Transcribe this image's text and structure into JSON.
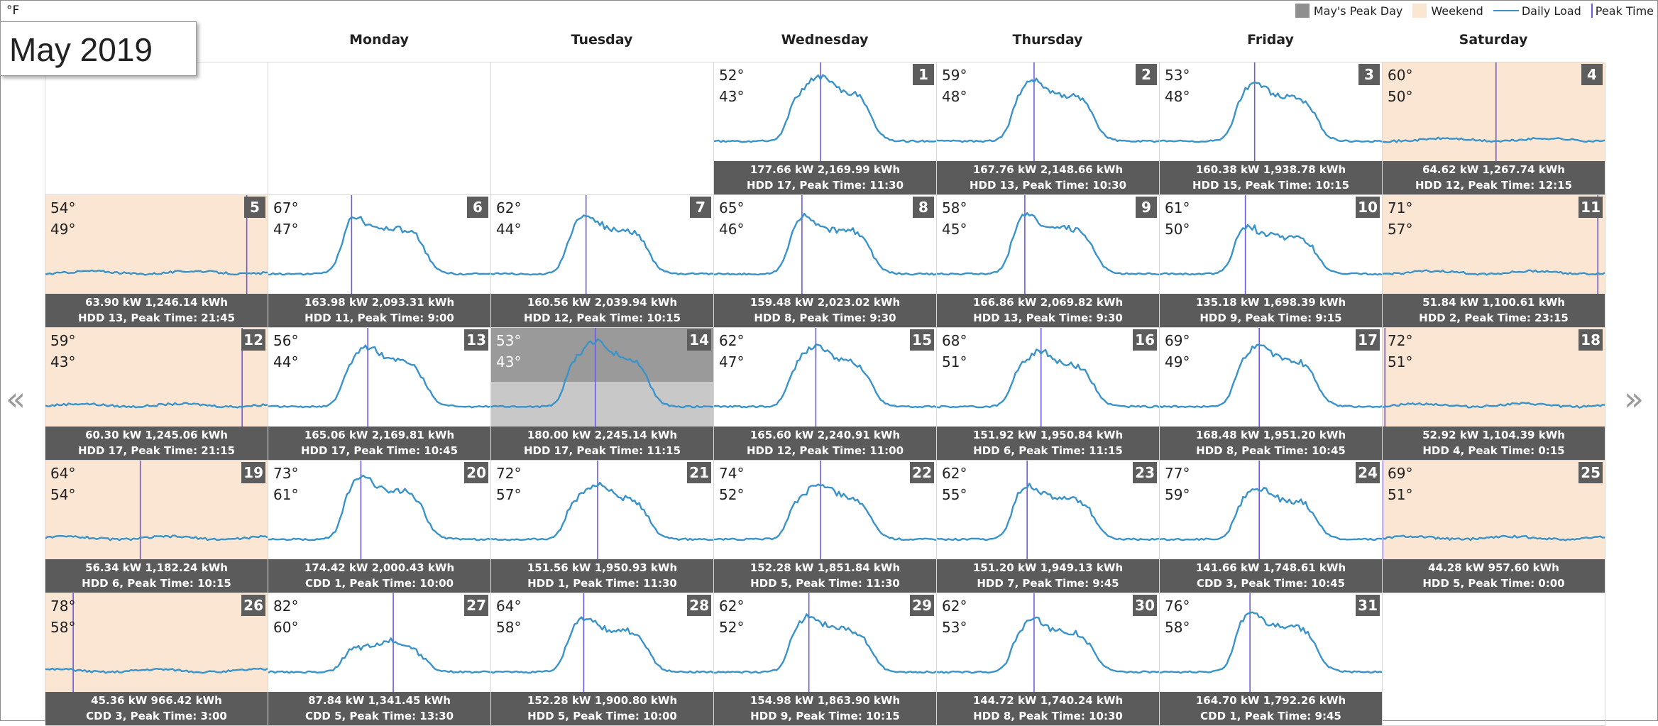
{
  "header": {
    "unit": "°F",
    "month_title": "May 2019",
    "legend": [
      {
        "name": "peak-day",
        "label": "May's Peak Day",
        "kind": "swatch",
        "color": "#8f8f8f"
      },
      {
        "name": "weekend",
        "label": "Weekend",
        "kind": "swatch",
        "color": "#fbe5d3"
      },
      {
        "name": "daily-load",
        "label": "Daily Load",
        "kind": "line",
        "color": "#3a93c8"
      },
      {
        "name": "peak-time",
        "label": "Peak Time",
        "kind": "vline",
        "color": "#6a5ae0"
      }
    ]
  },
  "weekdays": [
    "Monday",
    "Tuesday",
    "Wednesday",
    "Thursday",
    "Friday",
    "Saturday"
  ],
  "nav": {
    "prev": "«",
    "next": "»"
  },
  "colors": {
    "load_line": "#3a93c8",
    "peak_line": "#6a5ae0",
    "weekend_bg": "#fbe5d3",
    "peak_bg": "#c8c8c8",
    "footer_bg": "#5b5b5b"
  },
  "days": [
    {
      "day": 1,
      "hi": "52°",
      "lo": "43°",
      "line1": "177.66 kW 2,169.99 kWh",
      "line2": "HDD 17, Peak Time: 11:30",
      "peak_hour": 11.5,
      "weekend": false
    },
    {
      "day": 2,
      "hi": "59°",
      "lo": "48°",
      "line1": "167.76 kW 2,148.66 kWh",
      "line2": "HDD 13, Peak Time: 10:30",
      "peak_hour": 10.5,
      "weekend": false
    },
    {
      "day": 3,
      "hi": "53°",
      "lo": "48°",
      "line1": "160.38 kW 1,938.78 kWh",
      "line2": "HDD 15, Peak Time: 10:15",
      "peak_hour": 10.25,
      "weekend": false
    },
    {
      "day": 4,
      "hi": "60°",
      "lo": "50°",
      "line1": "64.62 kW 1,267.74 kWh",
      "line2": "HDD 12, Peak Time: 12:15",
      "peak_hour": 12.25,
      "weekend": true
    },
    {
      "day": 5,
      "hi": "54°",
      "lo": "49°",
      "line1": "63.90 kW 1,246.14 kWh",
      "line2": "HDD 13, Peak Time: 21:45",
      "peak_hour": 21.75,
      "weekend": true
    },
    {
      "day": 6,
      "hi": "67°",
      "lo": "47°",
      "line1": "163.98 kW 2,093.31 kWh",
      "line2": "HDD 11, Peak Time: 9:00",
      "peak_hour": 9.0,
      "weekend": false
    },
    {
      "day": 7,
      "hi": "62°",
      "lo": "44°",
      "line1": "160.56 kW 2,039.94 kWh",
      "line2": "HDD 12, Peak Time: 10:15",
      "peak_hour": 10.25,
      "weekend": false
    },
    {
      "day": 8,
      "hi": "65°",
      "lo": "46°",
      "line1": "159.48 kW 2,023.02 kWh",
      "line2": "HDD 8, Peak Time: 9:30",
      "peak_hour": 9.5,
      "weekend": false
    },
    {
      "day": 9,
      "hi": "58°",
      "lo": "45°",
      "line1": "166.86 kW 2,069.82 kWh",
      "line2": "HDD 13, Peak Time: 9:30",
      "peak_hour": 9.5,
      "weekend": false
    },
    {
      "day": 10,
      "hi": "61°",
      "lo": "50°",
      "line1": "135.18 kW 1,698.39 kWh",
      "line2": "HDD 9, Peak Time: 9:15",
      "peak_hour": 9.25,
      "weekend": false
    },
    {
      "day": 11,
      "hi": "71°",
      "lo": "57°",
      "line1": "51.84 kW 1,100.61 kWh",
      "line2": "HDD 2, Peak Time: 23:15",
      "peak_hour": 23.25,
      "weekend": true
    },
    {
      "day": 12,
      "hi": "59°",
      "lo": "43°",
      "line1": "60.30 kW 1,245.06 kWh",
      "line2": "HDD 17, Peak Time: 21:15",
      "peak_hour": 21.25,
      "weekend": true
    },
    {
      "day": 13,
      "hi": "56°",
      "lo": "44°",
      "line1": "165.06 kW 2,169.81 kWh",
      "line2": "HDD 17, Peak Time: 10:45",
      "peak_hour": 10.75,
      "weekend": false
    },
    {
      "day": 14,
      "hi": "53°",
      "lo": "43°",
      "line1": "180.00 kW 2,245.14 kWh",
      "line2": "HDD 17, Peak Time: 11:15",
      "peak_hour": 11.25,
      "weekend": false,
      "peak_day": true
    },
    {
      "day": 15,
      "hi": "62°",
      "lo": "47°",
      "line1": "165.60 kW 2,240.91 kWh",
      "line2": "HDD 12, Peak Time: 11:00",
      "peak_hour": 11.0,
      "weekend": false
    },
    {
      "day": 16,
      "hi": "68°",
      "lo": "51°",
      "line1": "151.92 kW 1,950.84 kWh",
      "line2": "HDD 6, Peak Time: 11:15",
      "peak_hour": 11.25,
      "weekend": false
    },
    {
      "day": 17,
      "hi": "69°",
      "lo": "49°",
      "line1": "168.48 kW 1,951.20 kWh",
      "line2": "HDD 8, Peak Time: 10:45",
      "peak_hour": 10.75,
      "weekend": false
    },
    {
      "day": 18,
      "hi": "72°",
      "lo": "51°",
      "line1": "52.92 kW 1,104.39 kWh",
      "line2": "HDD 4, Peak Time: 0:15",
      "peak_hour": 0.25,
      "weekend": true
    },
    {
      "day": 19,
      "hi": "64°",
      "lo": "54°",
      "line1": "56.34 kW 1,182.24 kWh",
      "line2": "HDD 6, Peak Time: 10:15",
      "peak_hour": 10.25,
      "weekend": true
    },
    {
      "day": 20,
      "hi": "73°",
      "lo": "61°",
      "line1": "174.42 kW 2,000.43 kWh",
      "line2": "CDD 1, Peak Time: 10:00",
      "peak_hour": 10.0,
      "weekend": false
    },
    {
      "day": 21,
      "hi": "72°",
      "lo": "57°",
      "line1": "151.56 kW 1,950.93 kWh",
      "line2": "HDD 1, Peak Time: 11:30",
      "peak_hour": 11.5,
      "weekend": false
    },
    {
      "day": 22,
      "hi": "74°",
      "lo": "52°",
      "line1": "152.28 kW 1,851.84 kWh",
      "line2": "HDD 5, Peak Time: 11:30",
      "peak_hour": 11.5,
      "weekend": false
    },
    {
      "day": 23,
      "hi": "62°",
      "lo": "55°",
      "line1": "151.20 kW 1,949.13 kWh",
      "line2": "HDD 7, Peak Time: 9:45",
      "peak_hour": 9.75,
      "weekend": false
    },
    {
      "day": 24,
      "hi": "77°",
      "lo": "59°",
      "line1": "141.66 kW 1,748.61 kWh",
      "line2": "CDD 3, Peak Time: 10:45",
      "peak_hour": 10.75,
      "weekend": false
    },
    {
      "day": 25,
      "hi": "69°",
      "lo": "51°",
      "line1": "44.28 kW 957.60 kWh",
      "line2": "HDD 5, Peak Time: 0:00",
      "peak_hour": 0.0,
      "weekend": true
    },
    {
      "day": 26,
      "hi": "78°",
      "lo": "58°",
      "line1": "45.36 kW 966.42 kWh",
      "line2": "CDD 3, Peak Time: 3:00",
      "peak_hour": 3.0,
      "weekend": true
    },
    {
      "day": 27,
      "hi": "82°",
      "lo": "60°",
      "line1": "87.84 kW 1,341.45 kWh",
      "line2": "CDD 5, Peak Time: 13:30",
      "peak_hour": 13.5,
      "weekend": false
    },
    {
      "day": 28,
      "hi": "64°",
      "lo": "58°",
      "line1": "152.28 kW 1,900.80 kWh",
      "line2": "HDD 5, Peak Time: 10:00",
      "peak_hour": 10.0,
      "weekend": false
    },
    {
      "day": 29,
      "hi": "62°",
      "lo": "52°",
      "line1": "154.98 kW 1,863.90 kWh",
      "line2": "HDD 9, Peak Time: 10:15",
      "peak_hour": 10.25,
      "weekend": false
    },
    {
      "day": 30,
      "hi": "62°",
      "lo": "53°",
      "line1": "144.72 kW 1,740.24 kWh",
      "line2": "HDD 8, Peak Time: 10:30",
      "peak_hour": 10.5,
      "weekend": false
    },
    {
      "day": 31,
      "hi": "76°",
      "lo": "58°",
      "line1": "164.70 kW 1,792.26 kWh",
      "line2": "CDD 1, Peak Time: 9:45",
      "peak_hour": 9.75,
      "weekend": false
    }
  ]
}
